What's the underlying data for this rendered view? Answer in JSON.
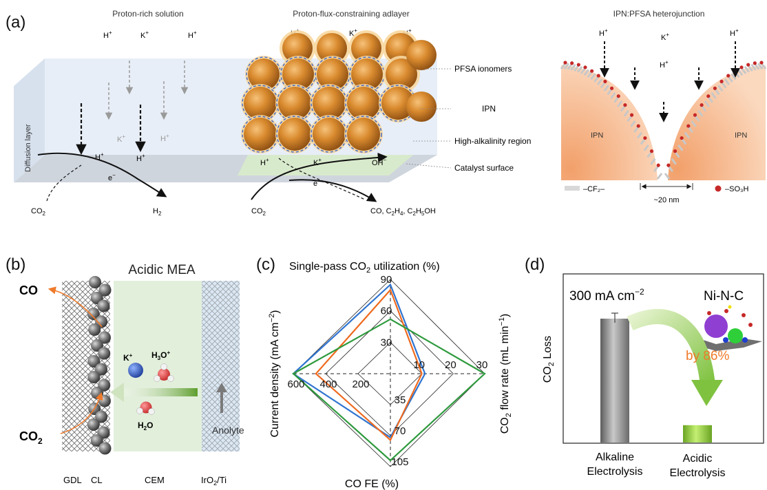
{
  "panel_a": {
    "letter": "(a)",
    "header_left": "Proton-rich solution",
    "header_mid": "Proton-flux-constraining adlayer",
    "header_right": "IPN:PFSA heterojunction",
    "ion_h": "H",
    "ion_k": "K",
    "ion_oh": "OH",
    "electron": "e",
    "diffusion_layer": "Diffusion layer",
    "callout_pfsa": "PFSA ionomers",
    "callout_ipn": "IPN",
    "callout_alkaline": "High-alkalinity region",
    "callout_catalyst": "Catalyst surface",
    "co2": "CO",
    "h2": "H",
    "products": "CO, C",
    "ipn_left": "IPN",
    "ipn_right": "IPN",
    "legend_cf2": "–CF₂–",
    "legend_distance": "~20 nm",
    "legend_so3h": "–SO₃H"
  },
  "panel_b": {
    "letter": "(b)",
    "title": "Acidic MEA",
    "co": "CO",
    "co2": "CO",
    "k_ion": "K",
    "h3o_ion": "H",
    "h2o": "H",
    "anolyte": "Anolyte",
    "label_gdl": "GDL",
    "label_cl": "CL",
    "label_cem": "CEM",
    "label_iro2": "IrO",
    "label_ti": "/Ti"
  },
  "panel_c": {
    "letter": "(c)",
    "chart_data": {
      "type": "radar",
      "axes": [
        {
          "name": "Single-pass CO2 utilization (%)",
          "ticks": [
            30,
            60,
            90
          ]
        },
        {
          "name": "CO2 flow rate (mL min-1)",
          "ticks": [
            10,
            20,
            30
          ]
        },
        {
          "name": "CO FE (%)",
          "ticks": [
            35,
            70,
            105
          ]
        },
        {
          "name": "Current density (mA cm-2)",
          "ticks": [
            200,
            400,
            600
          ]
        }
      ],
      "series": [
        {
          "color": "#2f74d0",
          "values": [
            85,
            11,
            72,
            600
          ]
        },
        {
          "color": "#ef6a1f",
          "values": [
            80,
            10,
            75,
            460
          ]
        },
        {
          "color": "#2e9a3d",
          "values": [
            52,
            30,
            98,
            600
          ]
        }
      ],
      "grid": "concentric diamonds"
    },
    "title": "Single-pass CO",
    "title_tail": " utilization (%)",
    "left_axis": "Current density (mA cm",
    "right_axis": "CO",
    "right_axis_tail": " flow rate (mL min",
    "bottom_axis": "CO FE (%)"
  },
  "panel_d": {
    "letter": "(d)",
    "chart_data": {
      "type": "bar",
      "categories": [
        "Alkaline Electrolysis",
        "Acidic Electrolysis"
      ],
      "values": [
        100,
        14
      ],
      "bar_colors": [
        "#8a8a8a",
        "#8cc63f"
      ],
      "ylabel": "CO2 Loss",
      "annotation": "by 86%"
    },
    "title": "300 mA cm",
    "title_exp": "−2",
    "catalyst": "Ni-N-C",
    "ylabel": "CO",
    "ylabel_tail": " Loss",
    "cat1_line1": "Alkaline",
    "cat1_line2": "Electrolysis",
    "cat2_line1": "Acidic",
    "cat2_line2": "Electrolysis",
    "reduction": "by 86%"
  }
}
